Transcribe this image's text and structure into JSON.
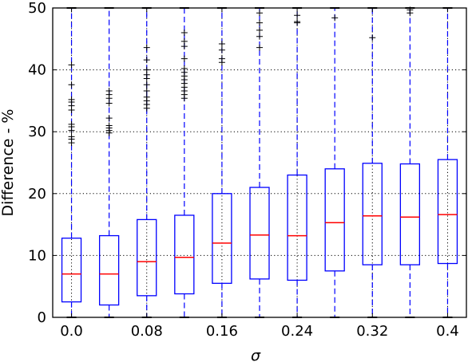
{
  "chart_data": {
    "type": "boxplot",
    "xlabel": "σ",
    "ylabel": "Difference - %",
    "ylim": [
      0,
      50
    ],
    "yticks": [
      0,
      10,
      20,
      30,
      40,
      50
    ],
    "x_tick_labels": [
      {
        "label": "0.0",
        "position": 1
      },
      {
        "label": "0.08",
        "position": 3
      },
      {
        "label": "0.16",
        "position": 5
      },
      {
        "label": "0.24",
        "position": 7
      },
      {
        "label": "0.32",
        "position": 9
      },
      {
        "label": "0.4",
        "position": 11
      }
    ],
    "grid": true,
    "colors": {
      "box": "#0000ff",
      "median": "#ff0000",
      "whisker": "#0000ff",
      "flier": "#000000",
      "grid": "#000000"
    },
    "boxes": [
      {
        "sigma": 0.0,
        "q1": 2.5,
        "median": 7.0,
        "q3": 12.8,
        "whisker_low": 0,
        "whisker_high": 50,
        "fliers": [
          28.2,
          28.8,
          29.2,
          30.2,
          30.8,
          31.2,
          33.5,
          34.2,
          34.8,
          35.2,
          37.6,
          40.8
        ]
      },
      {
        "sigma": 0.04,
        "q1": 2.0,
        "median": 7.0,
        "q3": 13.2,
        "whisker_low": 0,
        "whisker_high": 50,
        "fliers": [
          29.8,
          30.2,
          30.6,
          31.0,
          32.2,
          34.6,
          35.4,
          36.0,
          36.6
        ]
      },
      {
        "sigma": 0.08,
        "q1": 3.5,
        "median": 9.0,
        "q3": 15.8,
        "whisker_low": 0,
        "whisker_high": 50,
        "fliers": [
          33.8,
          34.4,
          35.0,
          35.6,
          36.6,
          37.6,
          38.6,
          39.2,
          40.0,
          41.6,
          43.6
        ]
      },
      {
        "sigma": 0.12,
        "q1": 3.8,
        "median": 9.7,
        "q3": 16.5,
        "whisker_low": 0,
        "whisker_high": 50,
        "fliers": [
          35.4,
          36.0,
          36.6,
          37.2,
          37.8,
          38.4,
          39.0,
          39.6,
          40.2,
          41.8,
          43.8,
          44.6,
          46.0
        ]
      },
      {
        "sigma": 0.16,
        "q1": 5.5,
        "median": 12.0,
        "q3": 20.0,
        "whisker_low": 0,
        "whisker_high": 50,
        "fliers": [
          41.2,
          41.8,
          43.2,
          44.2
        ]
      },
      {
        "sigma": 0.2,
        "q1": 6.2,
        "median": 13.3,
        "q3": 21.0,
        "whisker_low": 0,
        "whisker_high": 50,
        "fliers": [
          43.6,
          45.4,
          46.4,
          47.6,
          49.2
        ]
      },
      {
        "sigma": 0.24,
        "q1": 6.0,
        "median": 13.2,
        "q3": 23.0,
        "whisker_low": 0,
        "whisker_high": 50,
        "fliers": [
          47.6,
          47.8,
          48.8
        ]
      },
      {
        "sigma": 0.28,
        "q1": 7.5,
        "median": 15.3,
        "q3": 24.0,
        "whisker_low": 0,
        "whisker_high": 50,
        "fliers": [
          48.4
        ]
      },
      {
        "sigma": 0.32,
        "q1": 8.5,
        "median": 16.4,
        "q3": 24.9,
        "whisker_low": 0,
        "whisker_high": 50,
        "fliers": [
          45.2
        ]
      },
      {
        "sigma": 0.36,
        "q1": 8.5,
        "median": 16.2,
        "q3": 24.8,
        "whisker_low": 0,
        "whisker_high": 50,
        "fliers": [
          49.2,
          49.7
        ]
      },
      {
        "sigma": 0.4,
        "q1": 8.7,
        "median": 16.6,
        "q3": 25.5,
        "whisker_low": 0,
        "whisker_high": 50,
        "fliers": []
      }
    ]
  }
}
